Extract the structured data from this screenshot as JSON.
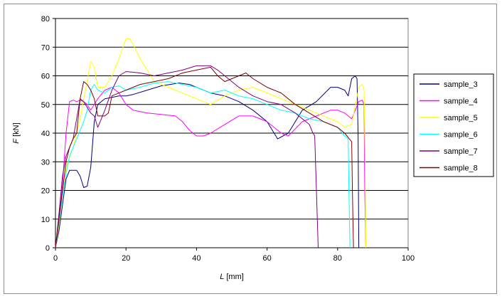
{
  "chart_data": {
    "type": "line",
    "title": "",
    "xlabel_var": "L",
    "xlabel_unit": " [mm]",
    "ylabel_var": "F",
    "ylabel_unit": " [kN]",
    "xlim": [
      0,
      100
    ],
    "ylim": [
      0,
      80
    ],
    "x_ticks": [
      0,
      20,
      40,
      60,
      80,
      100
    ],
    "y_ticks": [
      0,
      10,
      20,
      30,
      40,
      50,
      60,
      70,
      80
    ],
    "grid": "horizontal",
    "plot_background": "#ffffff",
    "legend_position": "right",
    "series": [
      {
        "name": "sample_3",
        "color": "#000080",
        "points": [
          [
            0,
            0
          ],
          [
            1,
            6
          ],
          [
            2,
            15
          ],
          [
            3,
            24
          ],
          [
            4,
            27
          ],
          [
            5,
            27
          ],
          [
            6,
            27
          ],
          [
            7,
            25
          ],
          [
            8,
            21
          ],
          [
            9,
            21.5
          ],
          [
            10,
            28
          ],
          [
            11,
            44
          ],
          [
            12,
            50
          ],
          [
            14,
            52
          ],
          [
            16,
            52.5
          ],
          [
            18,
            53
          ],
          [
            20,
            53
          ],
          [
            22,
            53.5
          ],
          [
            26,
            55
          ],
          [
            30,
            56.5
          ],
          [
            35,
            57.5
          ],
          [
            38,
            57
          ],
          [
            40,
            56
          ],
          [
            44,
            54
          ],
          [
            48,
            53
          ],
          [
            52,
            51
          ],
          [
            56,
            48
          ],
          [
            60,
            44
          ],
          [
            63,
            38
          ],
          [
            66,
            40
          ],
          [
            70,
            48
          ],
          [
            74,
            51
          ],
          [
            78,
            56
          ],
          [
            80,
            56
          ],
          [
            82,
            55
          ],
          [
            83,
            53
          ],
          [
            84,
            59
          ],
          [
            85,
            60
          ],
          [
            85.5,
            59
          ],
          [
            85.8,
            40
          ],
          [
            86,
            0
          ]
        ]
      },
      {
        "name": "sample_4",
        "color": "#ff00ff",
        "points": [
          [
            0,
            0
          ],
          [
            1,
            10
          ],
          [
            2,
            22
          ],
          [
            3,
            40
          ],
          [
            4,
            51
          ],
          [
            5,
            51.5
          ],
          [
            6,
            51
          ],
          [
            7,
            51.5
          ],
          [
            8,
            51
          ],
          [
            9,
            50
          ],
          [
            10,
            48
          ],
          [
            12,
            52
          ],
          [
            14,
            55
          ],
          [
            16,
            56
          ],
          [
            18,
            54
          ],
          [
            20,
            50
          ],
          [
            22,
            48
          ],
          [
            26,
            47
          ],
          [
            30,
            46.5
          ],
          [
            34,
            46
          ],
          [
            36,
            44
          ],
          [
            38,
            41
          ],
          [
            40,
            39
          ],
          [
            42,
            39
          ],
          [
            44,
            40
          ],
          [
            48,
            43
          ],
          [
            52,
            46
          ],
          [
            56,
            46
          ],
          [
            60,
            44
          ],
          [
            64,
            40
          ],
          [
            66,
            39
          ],
          [
            70,
            44
          ],
          [
            74,
            46
          ],
          [
            78,
            48
          ],
          [
            80,
            48
          ],
          [
            82,
            47
          ],
          [
            84,
            45
          ],
          [
            85,
            48
          ],
          [
            86,
            51
          ],
          [
            87,
            51.5
          ],
          [
            87.5,
            50
          ],
          [
            87.7,
            20
          ],
          [
            88,
            0
          ]
        ]
      },
      {
        "name": "sample_5",
        "color": "#ffff00",
        "points": [
          [
            0,
            0
          ],
          [
            1,
            8
          ],
          [
            2,
            18
          ],
          [
            3,
            28
          ],
          [
            5,
            35
          ],
          [
            7,
            45
          ],
          [
            8,
            52
          ],
          [
            9,
            58
          ],
          [
            10,
            65
          ],
          [
            11,
            63
          ],
          [
            12,
            56
          ],
          [
            14,
            56
          ],
          [
            16,
            60
          ],
          [
            18,
            66
          ],
          [
            20,
            73
          ],
          [
            21,
            73
          ],
          [
            22,
            71
          ],
          [
            24,
            66
          ],
          [
            26,
            62
          ],
          [
            28,
            58
          ],
          [
            32,
            56
          ],
          [
            36,
            54
          ],
          [
            40,
            52
          ],
          [
            44,
            50
          ],
          [
            48,
            53
          ],
          [
            52,
            55
          ],
          [
            56,
            56
          ],
          [
            60,
            54
          ],
          [
            66,
            51
          ],
          [
            70,
            49
          ],
          [
            74,
            47
          ],
          [
            78,
            45
          ],
          [
            80,
            44
          ],
          [
            82,
            42
          ],
          [
            84,
            43
          ],
          [
            86,
            56
          ],
          [
            87,
            57
          ],
          [
            87.5,
            55
          ],
          [
            87.8,
            30
          ],
          [
            88,
            0
          ]
        ]
      },
      {
        "name": "sample_6",
        "color": "#00ffff",
        "points": [
          [
            0,
            0
          ],
          [
            1,
            9
          ],
          [
            2,
            18
          ],
          [
            3,
            26
          ],
          [
            4,
            32
          ],
          [
            6,
            38
          ],
          [
            8,
            44
          ],
          [
            9,
            48
          ],
          [
            10,
            55
          ],
          [
            11,
            57
          ],
          [
            12,
            55
          ],
          [
            14,
            54
          ],
          [
            16,
            56
          ],
          [
            18,
            56.5
          ],
          [
            20,
            55
          ],
          [
            24,
            56
          ],
          [
            28,
            57.5
          ],
          [
            32,
            58
          ],
          [
            36,
            57
          ],
          [
            40,
            56
          ],
          [
            44,
            54
          ],
          [
            48,
            55
          ],
          [
            52,
            53
          ],
          [
            56,
            52
          ],
          [
            60,
            50
          ],
          [
            64,
            48
          ],
          [
            68,
            47
          ],
          [
            72,
            45
          ],
          [
            76,
            44
          ],
          [
            80,
            42
          ],
          [
            82,
            39
          ],
          [
            83,
            38
          ],
          [
            83.2,
            20
          ],
          [
            83.5,
            0
          ]
        ]
      },
      {
        "name": "sample_7",
        "color": "#800080",
        "points": [
          [
            0,
            0
          ],
          [
            1,
            12
          ],
          [
            2,
            25
          ],
          [
            3,
            32
          ],
          [
            4,
            35
          ],
          [
            5,
            38
          ],
          [
            6,
            45
          ],
          [
            7,
            52
          ],
          [
            8,
            51
          ],
          [
            9,
            49
          ],
          [
            10,
            47
          ],
          [
            11,
            46
          ],
          [
            12,
            42
          ],
          [
            13,
            45
          ],
          [
            14,
            48
          ],
          [
            16,
            55
          ],
          [
            18,
            60
          ],
          [
            20,
            61.5
          ],
          [
            24,
            61
          ],
          [
            28,
            60
          ],
          [
            32,
            61
          ],
          [
            36,
            62
          ],
          [
            40,
            63.5
          ],
          [
            44,
            63.5
          ],
          [
            46,
            62
          ],
          [
            48,
            60
          ],
          [
            52,
            56
          ],
          [
            56,
            53
          ],
          [
            60,
            51
          ],
          [
            64,
            50
          ],
          [
            68,
            47
          ],
          [
            72,
            43
          ],
          [
            73,
            40
          ],
          [
            73.5,
            39
          ],
          [
            74,
            20
          ],
          [
            74.5,
            0
          ]
        ]
      },
      {
        "name": "sample_8",
        "color": "#800000",
        "points": [
          [
            0,
            0
          ],
          [
            1,
            10
          ],
          [
            2,
            20
          ],
          [
            3,
            30
          ],
          [
            4,
            35
          ],
          [
            5,
            38
          ],
          [
            6,
            40
          ],
          [
            7,
            52
          ],
          [
            8,
            58
          ],
          [
            9,
            57
          ],
          [
            10,
            55
          ],
          [
            11,
            52
          ],
          [
            12,
            46
          ],
          [
            14,
            46
          ],
          [
            15,
            47
          ],
          [
            16,
            53
          ],
          [
            18,
            54
          ],
          [
            20,
            55
          ],
          [
            24,
            57
          ],
          [
            28,
            58
          ],
          [
            32,
            59
          ],
          [
            36,
            61
          ],
          [
            40,
            62
          ],
          [
            44,
            63
          ],
          [
            46,
            60
          ],
          [
            48,
            58
          ],
          [
            52,
            60
          ],
          [
            54,
            61
          ],
          [
            56,
            59
          ],
          [
            60,
            56
          ],
          [
            64,
            54
          ],
          [
            68,
            50
          ],
          [
            72,
            47
          ],
          [
            76,
            44
          ],
          [
            80,
            42
          ],
          [
            82,
            40
          ],
          [
            84,
            37
          ],
          [
            84.2,
            20
          ],
          [
            84.5,
            0
          ]
        ]
      }
    ]
  }
}
